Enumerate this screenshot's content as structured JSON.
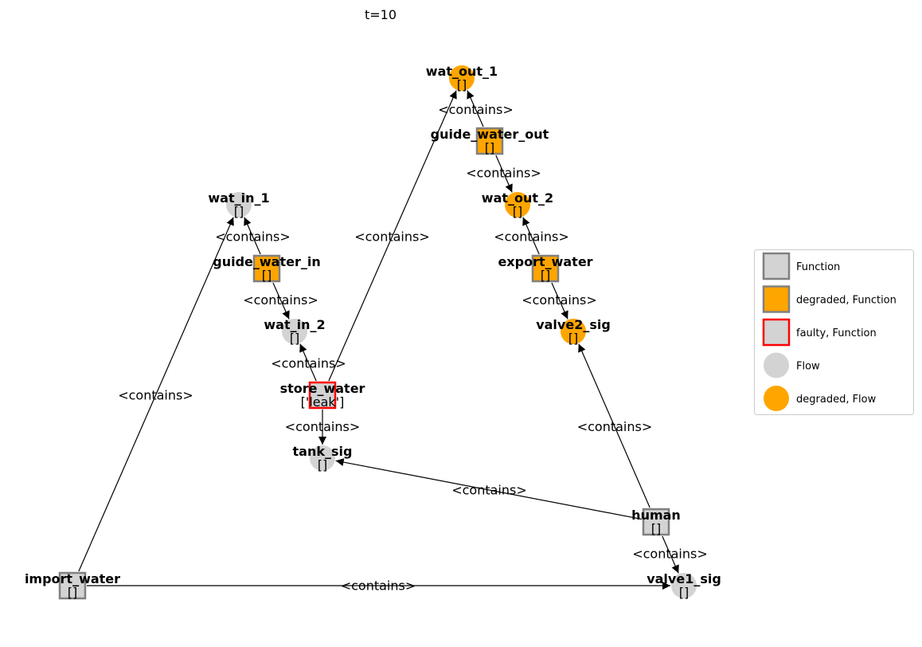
{
  "title": "t=10",
  "node_types": {
    "Function": {
      "shape": "square",
      "fill": "#d3d3d3",
      "stroke": "#808080"
    },
    "degraded, Function": {
      "shape": "square",
      "fill": "#ffa500",
      "stroke": "#808080"
    },
    "faulty, Function": {
      "shape": "square",
      "fill": "#d3d3d3",
      "stroke": "#ff0000"
    },
    "Flow": {
      "shape": "circle",
      "fill": "#d3d3d3"
    },
    "degraded, Flow": {
      "shape": "circle",
      "fill": "#ffa500"
    }
  },
  "nodes": [
    {
      "id": "wat_out_1",
      "label": "wat_out_1",
      "state": "[]",
      "type": "degraded, Flow"
    },
    {
      "id": "guide_water_out",
      "label": "guide_water_out",
      "state": "[]",
      "type": "degraded, Function"
    },
    {
      "id": "wat_out_2",
      "label": "wat_out_2",
      "state": "[]",
      "type": "degraded, Flow"
    },
    {
      "id": "wat_in_1",
      "label": "wat_in_1",
      "state": "[]",
      "type": "Flow"
    },
    {
      "id": "guide_water_in",
      "label": "guide_water_in",
      "state": "[]",
      "type": "degraded, Function"
    },
    {
      "id": "export_water",
      "label": "export_water",
      "state": "[]",
      "type": "degraded, Function"
    },
    {
      "id": "wat_in_2",
      "label": "wat_in_2",
      "state": "[]",
      "type": "Flow"
    },
    {
      "id": "valve2_sig",
      "label": "valve2_sig",
      "state": "[]",
      "type": "degraded, Flow"
    },
    {
      "id": "store_water",
      "label": "store_water",
      "state": "['leak']",
      "type": "faulty, Function"
    },
    {
      "id": "tank_sig",
      "label": "tank_sig",
      "state": "[]",
      "type": "Flow"
    },
    {
      "id": "human",
      "label": "human",
      "state": "[]",
      "type": "Function"
    },
    {
      "id": "import_water",
      "label": "import_water",
      "state": "[]",
      "type": "Function"
    },
    {
      "id": "valve1_sig",
      "label": "valve1_sig",
      "state": "[]",
      "type": "Flow"
    }
  ],
  "edges": [
    {
      "from": "guide_water_out",
      "to": "wat_out_1",
      "label": "<contains>"
    },
    {
      "from": "guide_water_out",
      "to": "wat_out_2",
      "label": "<contains>"
    },
    {
      "from": "guide_water_in",
      "to": "wat_in_1",
      "label": "<contains>"
    },
    {
      "from": "guide_water_in",
      "to": "wat_in_2",
      "label": "<contains>"
    },
    {
      "from": "export_water",
      "to": "wat_out_2",
      "label": "<contains>"
    },
    {
      "from": "export_water",
      "to": "valve2_sig",
      "label": "<contains>"
    },
    {
      "from": "store_water",
      "to": "wat_in_2",
      "label": "<contains>"
    },
    {
      "from": "store_water",
      "to": "wat_out_1",
      "label": "<contains>"
    },
    {
      "from": "store_water",
      "to": "tank_sig",
      "label": "<contains>"
    },
    {
      "from": "import_water",
      "to": "wat_in_1",
      "label": "<contains>"
    },
    {
      "from": "import_water",
      "to": "valve1_sig",
      "label": "<contains>"
    },
    {
      "from": "human",
      "to": "tank_sig",
      "label": "<contains>"
    },
    {
      "from": "human",
      "to": "valve2_sig",
      "label": "<contains>"
    },
    {
      "from": "human",
      "to": "valve1_sig",
      "label": "<contains>"
    }
  ],
  "legend": [
    {
      "label": "Function",
      "type": "Function"
    },
    {
      "label": "degraded, Function",
      "type": "degraded, Function"
    },
    {
      "label": "faulty, Function",
      "type": "faulty, Function"
    },
    {
      "label": "Flow",
      "type": "Flow"
    },
    {
      "label": "degraded, Flow",
      "type": "degraded, Flow"
    }
  ]
}
